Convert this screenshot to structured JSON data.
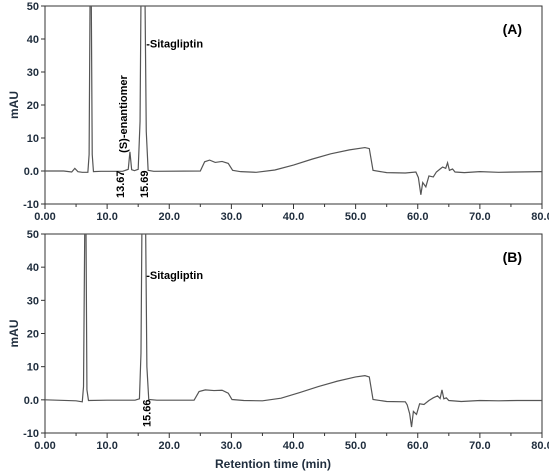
{
  "chart_data": [
    {
      "type": "line",
      "panel_label": "(A)",
      "ylabel": "mAU",
      "xlabel": "",
      "xlim": [
        0,
        80
      ],
      "ylim": [
        -10,
        50
      ],
      "x_ticks": [
        "0.00",
        "10.0",
        "20.0",
        "30.0",
        "40.0",
        "50.0",
        "60.0",
        "70.0",
        "80.0"
      ],
      "y_ticks": [
        "-10",
        "0.0",
        "10",
        "20",
        "30",
        "40",
        "50"
      ],
      "peak_labels": [
        {
          "text": "-Sitagliptin",
          "x": 16.3,
          "y": 37.5,
          "rotated": false
        },
        {
          "text": "(S)-enantiomer",
          "x": 13.2,
          "y": 5.5,
          "rotated": true
        }
      ],
      "retention_labels": [
        {
          "text": "13.67",
          "x": 12.1
        },
        {
          "text": "15.69",
          "x": 15.9
        }
      ],
      "series": [
        {
          "color": "#555555",
          "points": [
            [
              0,
              0.0
            ],
            [
              3.0,
              0.0
            ],
            [
              4.3,
              -0.3
            ],
            [
              4.8,
              0.8
            ],
            [
              5.3,
              -0.2
            ],
            [
              6.0,
              -0.4
            ],
            [
              6.9,
              -0.4
            ],
            [
              7.1,
              5.0
            ],
            [
              7.25,
              52.0
            ],
            [
              7.45,
              52.0
            ],
            [
              7.6,
              5.0
            ],
            [
              7.8,
              -0.2
            ],
            [
              9.0,
              -0.1
            ],
            [
              12.5,
              -0.1
            ],
            [
              13.4,
              0.5
            ],
            [
              13.67,
              5.8
            ],
            [
              13.95,
              0.4
            ],
            [
              14.4,
              0.1
            ],
            [
              15.0,
              0.5
            ],
            [
              15.3,
              15.0
            ],
            [
              15.45,
              52.0
            ],
            [
              16.1,
              52.0
            ],
            [
              16.3,
              12.0
            ],
            [
              16.6,
              0.2
            ],
            [
              17.5,
              -0.1
            ],
            [
              25.0,
              0.0
            ],
            [
              25.7,
              2.8
            ],
            [
              26.5,
              3.3
            ],
            [
              27.4,
              2.6
            ],
            [
              28.5,
              2.9
            ],
            [
              29.5,
              2.3
            ],
            [
              30.2,
              0.2
            ],
            [
              31.5,
              -0.2
            ],
            [
              34.0,
              -0.4
            ],
            [
              37.0,
              0.3
            ],
            [
              40.0,
              1.8
            ],
            [
              43.0,
              3.6
            ],
            [
              46.0,
              5.2
            ],
            [
              49.0,
              6.4
            ],
            [
              51.5,
              7.1
            ],
            [
              52.2,
              6.8
            ],
            [
              52.8,
              0.2
            ],
            [
              55.0,
              -0.5
            ],
            [
              58.0,
              -0.6
            ],
            [
              59.7,
              -0.3
            ],
            [
              60.1,
              -2.0
            ],
            [
              60.5,
              -7.2
            ],
            [
              60.8,
              -3.5
            ],
            [
              61.3,
              -4.8
            ],
            [
              61.8,
              -1.5
            ],
            [
              62.5,
              -1.8
            ],
            [
              63.0,
              -0.3
            ],
            [
              63.6,
              0.6
            ],
            [
              64.0,
              1.2
            ],
            [
              64.5,
              0.8
            ],
            [
              64.8,
              2.5
            ],
            [
              65.1,
              0.2
            ],
            [
              65.6,
              0.6
            ],
            [
              66.0,
              -0.3
            ],
            [
              67.5,
              -0.5
            ],
            [
              70.0,
              -0.2
            ],
            [
              73.0,
              -0.4
            ],
            [
              76.0,
              -0.3
            ],
            [
              80.0,
              -0.2
            ]
          ]
        }
      ]
    },
    {
      "type": "line",
      "panel_label": "(B)",
      "ylabel": "mAU",
      "xlabel": "Retention time (min)",
      "xlim": [
        0,
        80
      ],
      "ylim": [
        -10,
        50
      ],
      "x_ticks": [
        "0.00",
        "10.0",
        "20.0",
        "30.0",
        "40.0",
        "50.0",
        "60.0",
        "70.0",
        "80.0"
      ],
      "y_ticks": [
        "-10",
        "0.0",
        "10",
        "20",
        "30",
        "40",
        "50"
      ],
      "peak_labels": [
        {
          "text": "-Sitagliptin",
          "x": 16.3,
          "y": 36.5,
          "rotated": false
        }
      ],
      "retention_labels": [
        {
          "text": "15.66",
          "x": 16.3
        }
      ],
      "series": [
        {
          "color": "#555555",
          "points": [
            [
              0,
              0.0
            ],
            [
              5.0,
              -0.3
            ],
            [
              6.0,
              -0.6
            ],
            [
              6.2,
              4.0
            ],
            [
              6.4,
              52.0
            ],
            [
              6.6,
              52.0
            ],
            [
              6.75,
              3.0
            ],
            [
              7.0,
              -0.2
            ],
            [
              10.0,
              -0.1
            ],
            [
              14.5,
              -0.1
            ],
            [
              15.2,
              0.3
            ],
            [
              15.45,
              14.0
            ],
            [
              15.6,
              52.0
            ],
            [
              16.2,
              52.0
            ],
            [
              16.4,
              10.0
            ],
            [
              16.7,
              0.1
            ],
            [
              18.0,
              -0.1
            ],
            [
              24.0,
              -0.1
            ],
            [
              24.8,
              2.5
            ],
            [
              25.8,
              3.0
            ],
            [
              27.2,
              2.8
            ],
            [
              28.5,
              2.9
            ],
            [
              29.5,
              2.0
            ],
            [
              30.1,
              0.1
            ],
            [
              32.0,
              -0.2
            ],
            [
              35.0,
              -0.3
            ],
            [
              38.0,
              0.5
            ],
            [
              41.0,
              2.2
            ],
            [
              44.0,
              4.0
            ],
            [
              47.0,
              5.6
            ],
            [
              50.0,
              6.9
            ],
            [
              51.5,
              7.3
            ],
            [
              52.2,
              6.9
            ],
            [
              52.8,
              0.1
            ],
            [
              55.0,
              -0.5
            ],
            [
              58.0,
              -0.6
            ],
            [
              58.3,
              -1.5
            ],
            [
              58.7,
              -4.2
            ],
            [
              59.0,
              -8.2
            ],
            [
              59.3,
              -3.5
            ],
            [
              59.8,
              -4.4
            ],
            [
              60.3,
              -1.2
            ],
            [
              61.0,
              -1.4
            ],
            [
              61.8,
              -0.2
            ],
            [
              62.5,
              0.6
            ],
            [
              63.2,
              1.2
            ],
            [
              63.6,
              0.4
            ],
            [
              63.9,
              3.0
            ],
            [
              64.2,
              0.3
            ],
            [
              64.6,
              0.6
            ],
            [
              65.0,
              -0.2
            ],
            [
              67.0,
              -0.5
            ],
            [
              70.0,
              -0.2
            ],
            [
              73.0,
              -0.3
            ],
            [
              76.0,
              -0.2
            ],
            [
              80.0,
              -0.2
            ]
          ]
        }
      ]
    }
  ]
}
